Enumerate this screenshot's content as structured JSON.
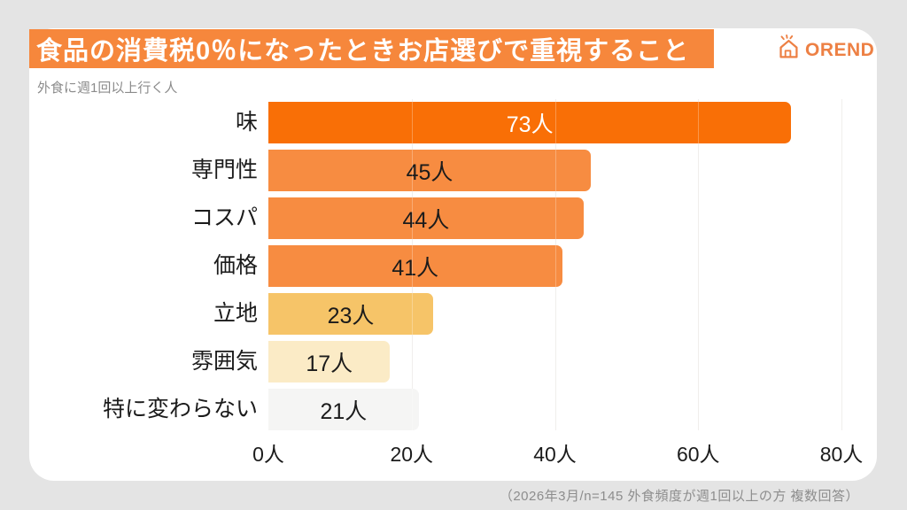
{
  "header": {
    "title": "食品の消費税0％になったときお店選びで重視すること",
    "brand": "OREND"
  },
  "subtitle": "外食に週1回以上行く人",
  "source_note": "（2026年3月/n=145 外食頻度が週1回以上の方 複数回答）",
  "colors": {
    "background": "#E4E4E4",
    "card": "#FFFFFF",
    "title_bar": "#F6873C",
    "title_text": "#FFFFFF",
    "brand": "#ED8044",
    "grid": "#EAE8E5",
    "text_dark": "#1B1B1B",
    "text_muted": "#8B8B8B",
    "source_text": "#8D8D8D"
  },
  "chart_data": {
    "type": "bar",
    "orientation": "horizontal",
    "title": "食品の消費税0％になったときお店選びで重視すること",
    "subtitle": "外食に週1回以上行く人",
    "categories": [
      "味",
      "専門性",
      "コスパ",
      "価格",
      "立地",
      "雰囲気",
      "特に変わらない"
    ],
    "values": [
      73,
      45,
      44,
      41,
      23,
      17,
      21
    ],
    "value_suffix": "人",
    "value_labels": [
      "73人",
      "45人",
      "44人",
      "41人",
      "23人",
      "17人",
      "21人"
    ],
    "bar_colors": [
      "#F96F06",
      "#F78C41",
      "#F78C41",
      "#F78C41",
      "#F6C468",
      "#FBEBC6",
      "#F5F5F4"
    ],
    "value_label_colors": [
      "#FFFFFF",
      "#1B1B1B",
      "#1B1B1B",
      "#1B1B1B",
      "#1B1B1B",
      "#1B1B1B",
      "#1B1B1B"
    ],
    "xlim": [
      0,
      80
    ],
    "x_ticks": [
      {
        "value": 0,
        "label": "0人"
      },
      {
        "value": 20,
        "label": "20人"
      },
      {
        "value": 40,
        "label": "40人"
      },
      {
        "value": 60,
        "label": "60人"
      },
      {
        "value": 80,
        "label": "80人"
      }
    ],
    "grid": "vertical",
    "legend": "none",
    "annotation": "（2026年3月/n=145 外食頻度が週1回以上の方 複数回答）"
  }
}
